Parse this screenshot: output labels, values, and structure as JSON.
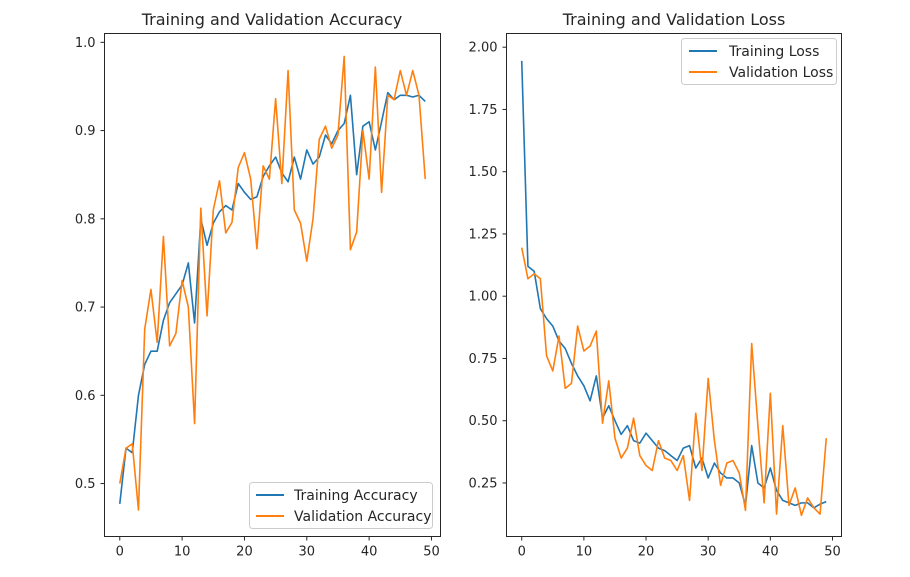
{
  "colors": {
    "training": "#1f77b4",
    "validation": "#ff7f0e"
  },
  "chart_data": [
    {
      "type": "line",
      "title": "Training and Validation Accuracy",
      "xlabel": "",
      "ylabel": "",
      "xlim": [
        -2.45,
        51.45
      ],
      "ylim": [
        0.44,
        1.01
      ],
      "xticks": [
        0,
        10,
        20,
        30,
        40,
        50
      ],
      "yticks": [
        0.5,
        0.6,
        0.7,
        0.8,
        0.9,
        1.0
      ],
      "xtick_labels": [
        "0",
        "10",
        "20",
        "30",
        "40",
        "50"
      ],
      "ytick_labels": [
        "0.5",
        "0.6",
        "0.7",
        "0.8",
        "0.9",
        "1.0"
      ],
      "legend_position": "lower right",
      "x": [
        0,
        1,
        2,
        3,
        4,
        5,
        6,
        7,
        8,
        9,
        10,
        11,
        12,
        13,
        14,
        15,
        16,
        17,
        18,
        19,
        20,
        21,
        22,
        23,
        24,
        25,
        26,
        27,
        28,
        29,
        30,
        31,
        32,
        33,
        34,
        35,
        36,
        37,
        38,
        39,
        40,
        41,
        42,
        43,
        44,
        45,
        46,
        47,
        48,
        49
      ],
      "series": [
        {
          "name": "Training Accuracy",
          "color_key": "training",
          "values": [
            0.477,
            0.54,
            0.535,
            0.6,
            0.635,
            0.65,
            0.65,
            0.685,
            0.705,
            0.715,
            0.725,
            0.75,
            0.682,
            0.8,
            0.77,
            0.795,
            0.808,
            0.815,
            0.81,
            0.84,
            0.83,
            0.822,
            0.825,
            0.848,
            0.86,
            0.87,
            0.852,
            0.842,
            0.87,
            0.845,
            0.878,
            0.862,
            0.87,
            0.895,
            0.885,
            0.9,
            0.908,
            0.94,
            0.85,
            0.905,
            0.91,
            0.878,
            0.91,
            0.943,
            0.935,
            0.94,
            0.94,
            0.938,
            0.94,
            0.933
          ]
        },
        {
          "name": "Validation Accuracy",
          "color_key": "validation",
          "values": [
            0.5,
            0.54,
            0.545,
            0.47,
            0.675,
            0.72,
            0.66,
            0.78,
            0.656,
            0.67,
            0.73,
            0.7,
            0.568,
            0.812,
            0.69,
            0.81,
            0.843,
            0.784,
            0.796,
            0.858,
            0.875,
            0.845,
            0.766,
            0.86,
            0.845,
            0.936,
            0.84,
            0.968,
            0.81,
            0.795,
            0.752,
            0.8,
            0.89,
            0.905,
            0.88,
            0.895,
            0.984,
            0.765,
            0.785,
            0.9,
            0.845,
            0.972,
            0.83,
            0.94,
            0.935,
            0.968,
            0.94,
            0.968,
            0.94,
            0.845
          ]
        }
      ]
    },
    {
      "type": "line",
      "title": "Training and Validation Loss",
      "xlabel": "",
      "ylabel": "",
      "xlim": [
        -2.45,
        51.45
      ],
      "ylim": [
        0.035,
        2.055
      ],
      "xticks": [
        0,
        10,
        20,
        30,
        40,
        50
      ],
      "yticks": [
        0.25,
        0.5,
        0.75,
        1.0,
        1.25,
        1.5,
        1.75,
        2.0
      ],
      "xtick_labels": [
        "0",
        "10",
        "20",
        "30",
        "40",
        "50"
      ],
      "ytick_labels": [
        "0.25",
        "0.50",
        "0.75",
        "1.00",
        "1.25",
        "1.50",
        "1.75",
        "2.00"
      ],
      "legend_position": "upper right",
      "x": [
        0,
        1,
        2,
        3,
        4,
        5,
        6,
        7,
        8,
        9,
        10,
        11,
        12,
        13,
        14,
        15,
        16,
        17,
        18,
        19,
        20,
        21,
        22,
        23,
        24,
        25,
        26,
        27,
        28,
        29,
        30,
        31,
        32,
        33,
        34,
        35,
        36,
        37,
        38,
        39,
        40,
        41,
        42,
        43,
        44,
        45,
        46,
        47,
        48,
        49
      ],
      "series": [
        {
          "name": "Training Loss",
          "color_key": "training",
          "values": [
            1.945,
            1.12,
            1.1,
            0.95,
            0.91,
            0.88,
            0.82,
            0.79,
            0.73,
            0.68,
            0.64,
            0.58,
            0.68,
            0.51,
            0.56,
            0.5,
            0.445,
            0.48,
            0.42,
            0.41,
            0.45,
            0.42,
            0.39,
            0.38,
            0.36,
            0.34,
            0.39,
            0.4,
            0.31,
            0.35,
            0.27,
            0.33,
            0.29,
            0.27,
            0.27,
            0.25,
            0.16,
            0.4,
            0.25,
            0.23,
            0.31,
            0.22,
            0.18,
            0.17,
            0.16,
            0.17,
            0.17,
            0.15,
            0.165,
            0.175
          ]
        },
        {
          "name": "Validation Loss",
          "color_key": "validation",
          "values": [
            1.195,
            1.07,
            1.09,
            1.07,
            0.76,
            0.7,
            0.84,
            0.63,
            0.65,
            0.88,
            0.78,
            0.8,
            0.86,
            0.49,
            0.66,
            0.43,
            0.35,
            0.39,
            0.51,
            0.36,
            0.32,
            0.3,
            0.42,
            0.35,
            0.34,
            0.3,
            0.36,
            0.18,
            0.53,
            0.3,
            0.67,
            0.42,
            0.24,
            0.33,
            0.34,
            0.29,
            0.14,
            0.81,
            0.48,
            0.17,
            0.61,
            0.125,
            0.48,
            0.16,
            0.23,
            0.12,
            0.19,
            0.15,
            0.125,
            0.43
          ]
        }
      ]
    }
  ]
}
